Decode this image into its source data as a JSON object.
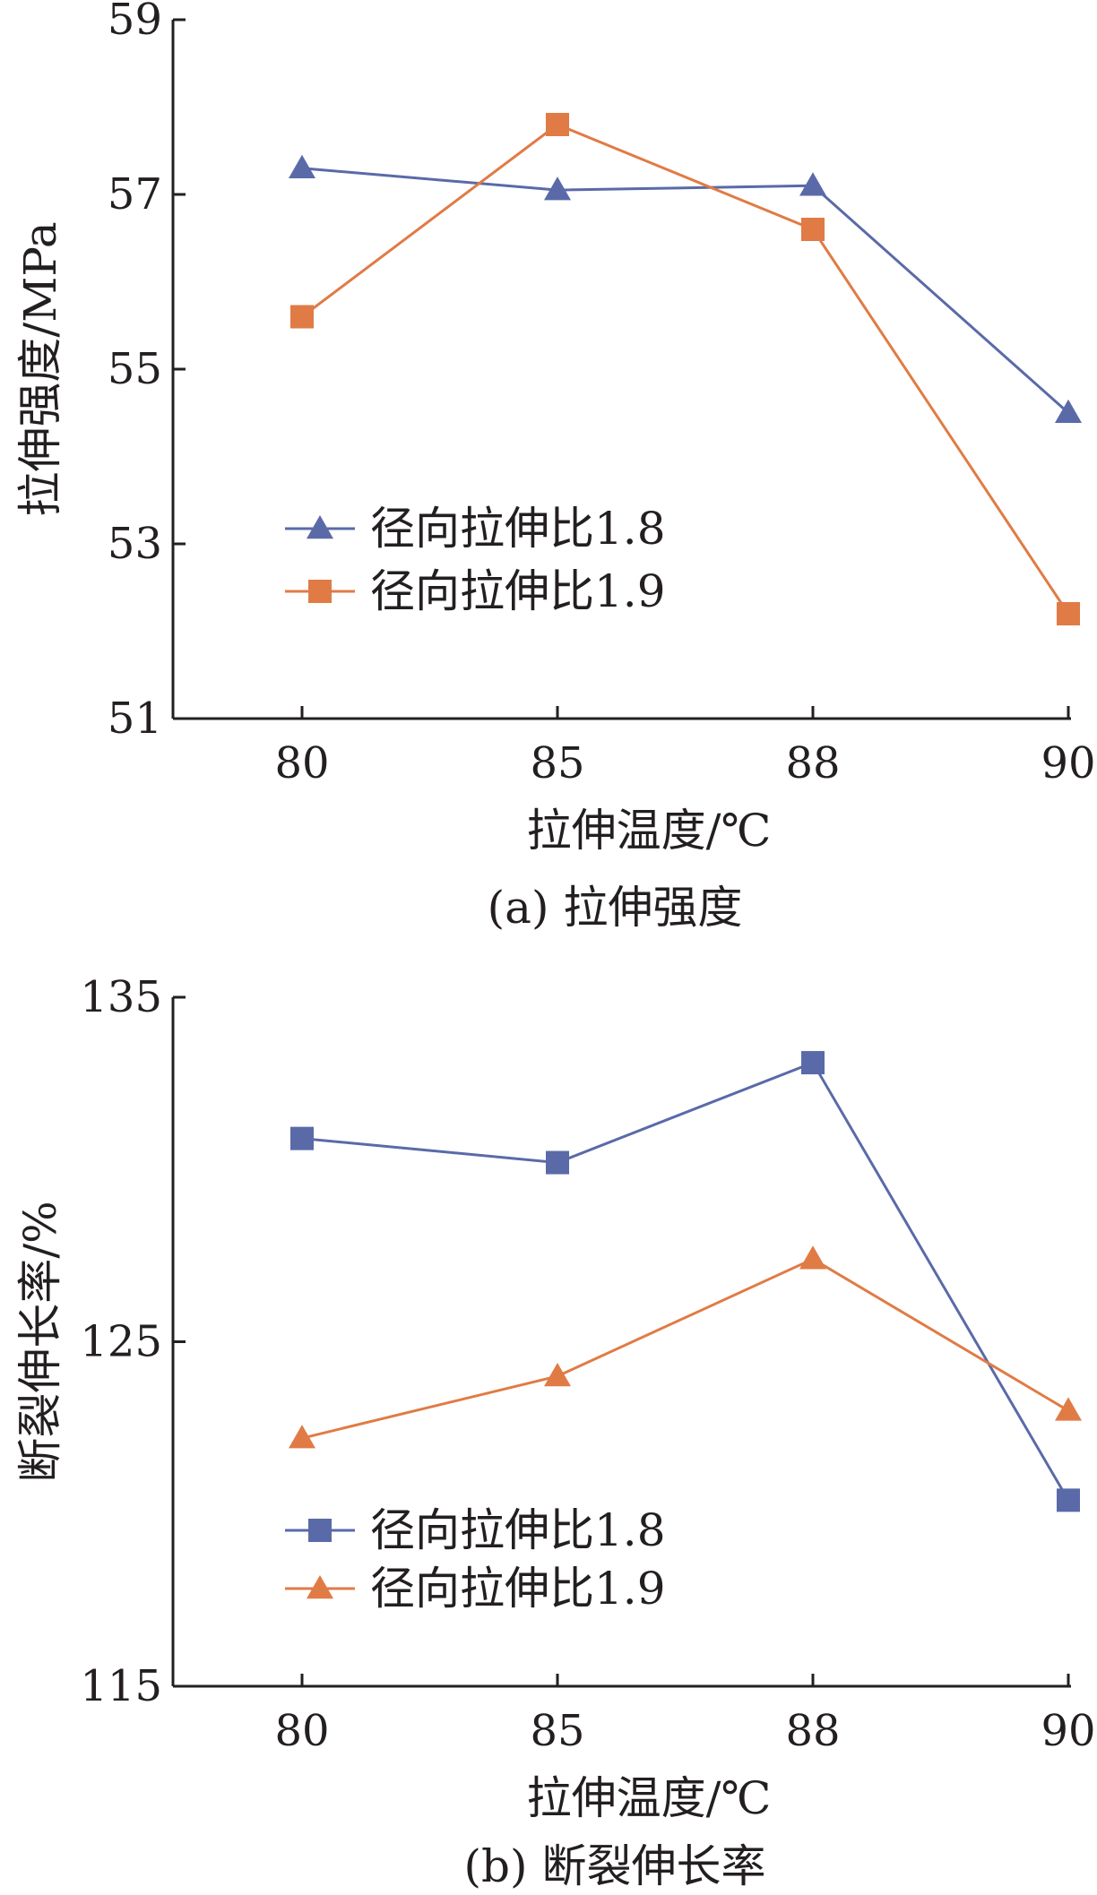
{
  "chart_data": [
    {
      "type": "line",
      "categories": [
        "80",
        "85",
        "88",
        "90"
      ],
      "series": [
        {
          "name": "径向拉伸比1.8",
          "color": "#5a6aa8",
          "marker": "triangle",
          "values": [
            57.3,
            57.05,
            57.1,
            54.5
          ]
        },
        {
          "name": "径向拉伸比1.9",
          "color": "#e07b45",
          "marker": "square",
          "values": [
            55.6,
            57.8,
            56.6,
            52.2
          ]
        }
      ],
      "xlabel": "拉伸温度/℃",
      "ylabel": "拉伸强度/MPa",
      "ylim": [
        51,
        59
      ],
      "yticks": [
        "51",
        "53",
        "55",
        "57",
        "59"
      ],
      "caption": "(a) 拉伸强度",
      "legend_position": "lower-left",
      "grid": false
    },
    {
      "type": "line",
      "categories": [
        "80",
        "85",
        "88",
        "90"
      ],
      "series": [
        {
          "name": "径向拉伸比1.8",
          "color": "#5a6aa8",
          "marker": "square",
          "values": [
            130.9,
            130.2,
            133.1,
            120.4
          ]
        },
        {
          "name": "径向拉伸比1.9",
          "color": "#e07b45",
          "marker": "triangle",
          "values": [
            122.2,
            124.0,
            127.4,
            123.0
          ]
        }
      ],
      "xlabel": "拉伸温度/℃",
      "ylabel": "断裂伸长率/%",
      "ylim": [
        115,
        135
      ],
      "yticks": [
        "115",
        "125",
        "135"
      ],
      "caption": "(b) 断裂伸长率",
      "legend_position": "lower-left",
      "grid": false
    }
  ]
}
